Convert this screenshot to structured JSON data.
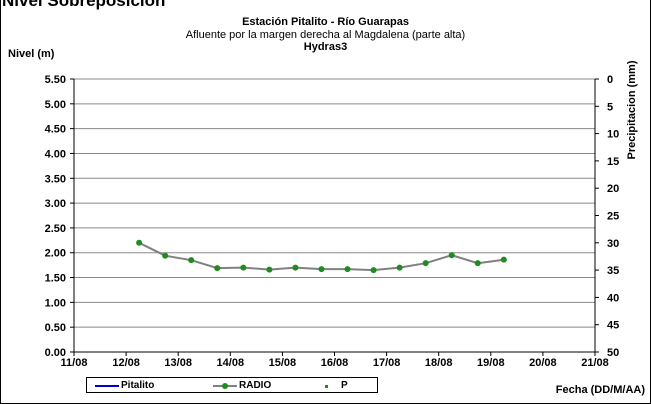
{
  "page": {
    "cut_title": "Nivel Sobreposición"
  },
  "chart_data": {
    "type": "line",
    "title": "Estación Pitalito  - Río Guarapas",
    "subtitle": "Afluente por la margen derecha al Magdalena (parte alta)",
    "subtitle2": "Hydras3",
    "ylabel": "Nivel (m)",
    "y2label": "Precipitacion (mm)",
    "xlabel": "Fecha (DD/M/AA)",
    "x_ticks": [
      "11/08",
      "12/08",
      "13/08",
      "14/08",
      "15/08",
      "16/08",
      "17/08",
      "18/08",
      "19/08",
      "20/08",
      "21/08"
    ],
    "xlim": [
      11,
      21
    ],
    "ylim": [
      0,
      5.5
    ],
    "y_ticks": [
      "0.00",
      "0.50",
      "1.00",
      "1.50",
      "2.00",
      "2.50",
      "3.00",
      "3.50",
      "4.00",
      "4.50",
      "5.00",
      "5.50"
    ],
    "y2lim": [
      50,
      0
    ],
    "y2_ticks": [
      "0",
      "5",
      "10",
      "15",
      "20",
      "25",
      "30",
      "35",
      "40",
      "45",
      "50"
    ],
    "grid": {
      "horizontal": true,
      "vertical": false
    },
    "series": [
      {
        "name": "Pitalito",
        "color": "#0000cc",
        "x": [],
        "values": []
      },
      {
        "name": "RADIO",
        "color": "#808080",
        "marker_color": "#1e8c1e",
        "x": [
          12.25,
          12.75,
          13.25,
          13.75,
          14.25,
          14.75,
          15.25,
          15.75,
          16.25,
          16.75,
          17.25,
          17.75,
          18.25,
          18.75,
          19.25
        ],
        "values": [
          2.2,
          1.94,
          1.85,
          1.69,
          1.7,
          1.66,
          1.7,
          1.67,
          1.67,
          1.65,
          1.7,
          1.79,
          1.95,
          1.79,
          1.86
        ]
      },
      {
        "name": "P",
        "color": "#1e8c1e",
        "x": [],
        "values": []
      }
    ],
    "legend_position": "bottom-left"
  }
}
